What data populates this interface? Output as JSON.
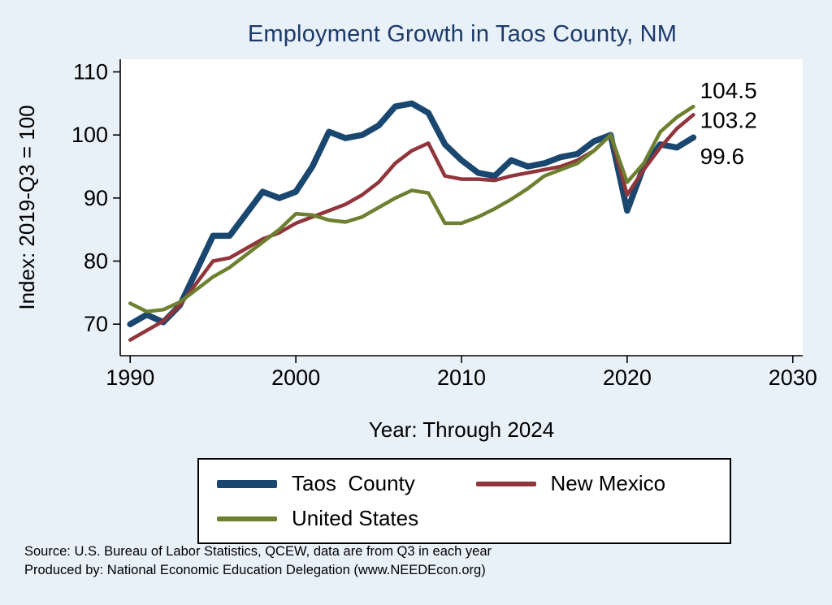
{
  "page": {
    "background": "#e9f1f8",
    "title_color": "#1b3a6b"
  },
  "source_line1": "Source: U.S. Bureau of Labor Statistics, QCEW, data are from Q3 in each year",
  "source_line2": "Produced by: National Economic Education Delegation (www.NEEDEcon.org)",
  "chart_data": {
    "type": "line",
    "title": "Employment Growth in Taos County, NM",
    "xlabel": "Year: Through 2024",
    "ylabel": "Index: 2019-Q3 = 100",
    "grid": false,
    "legend_position": "bottom",
    "xlim": [
      1989.4,
      2030.6
    ],
    "ylim": [
      65,
      112
    ],
    "x_ticks": [
      1990,
      2000,
      2010,
      2020,
      2030
    ],
    "y_ticks": [
      70,
      80,
      90,
      100,
      110
    ],
    "x": [
      1990,
      1991,
      1992,
      1993,
      1994,
      1995,
      1996,
      1997,
      1998,
      1999,
      2000,
      2001,
      2002,
      2003,
      2004,
      2005,
      2006,
      2007,
      2008,
      2009,
      2010,
      2011,
      2012,
      2013,
      2014,
      2015,
      2016,
      2017,
      2018,
      2019,
      2020,
      2021,
      2022,
      2023,
      2024
    ],
    "series": [
      {
        "name": "Taos  County",
        "color": "#1a476f",
        "width": 7.5,
        "values": [
          70,
          71.5,
          70.3,
          73,
          78.5,
          84,
          84,
          87.5,
          91,
          90,
          91,
          95,
          100.5,
          99.5,
          100,
          101.5,
          104.5,
          105,
          103.5,
          98.5,
          96,
          94,
          93.5,
          96,
          95,
          95.5,
          96.5,
          97,
          99,
          100,
          88,
          95,
          98.5,
          98,
          99.6
        ]
      },
      {
        "name": "New Mexico",
        "color": "#90353b",
        "width": 4.5,
        "values": [
          67.5,
          69,
          70.5,
          73,
          76.5,
          80,
          80.5,
          82,
          83.5,
          84.5,
          86,
          87,
          88,
          89,
          90.5,
          92.5,
          95.5,
          97.5,
          98.7,
          93.5,
          93,
          93,
          92.8,
          93.5,
          94,
          94.5,
          95,
          96,
          97.5,
          100,
          90.5,
          94.5,
          98,
          101,
          103.2
        ]
      },
      {
        "name": "United States",
        "color": "#6d8030",
        "width": 4.5,
        "values": [
          73.3,
          72,
          72.3,
          73.5,
          75.5,
          77.5,
          79,
          81,
          83,
          85,
          87.5,
          87.3,
          86.5,
          86.2,
          87,
          88.5,
          90,
          91.2,
          90.8,
          86,
          86,
          87,
          88.3,
          89.8,
          91.5,
          93.5,
          94.5,
          95.5,
          97.5,
          100,
          92.5,
          95.5,
          100.5,
          102.8,
          104.5
        ]
      }
    ],
    "annotations": [
      {
        "label": "104.5",
        "x": 2024.4,
        "y": 105.8
      },
      {
        "label": "103.2",
        "x": 2024.4,
        "y": 101.1
      },
      {
        "label": "99.6",
        "x": 2024.4,
        "y": 95.4
      }
    ]
  }
}
